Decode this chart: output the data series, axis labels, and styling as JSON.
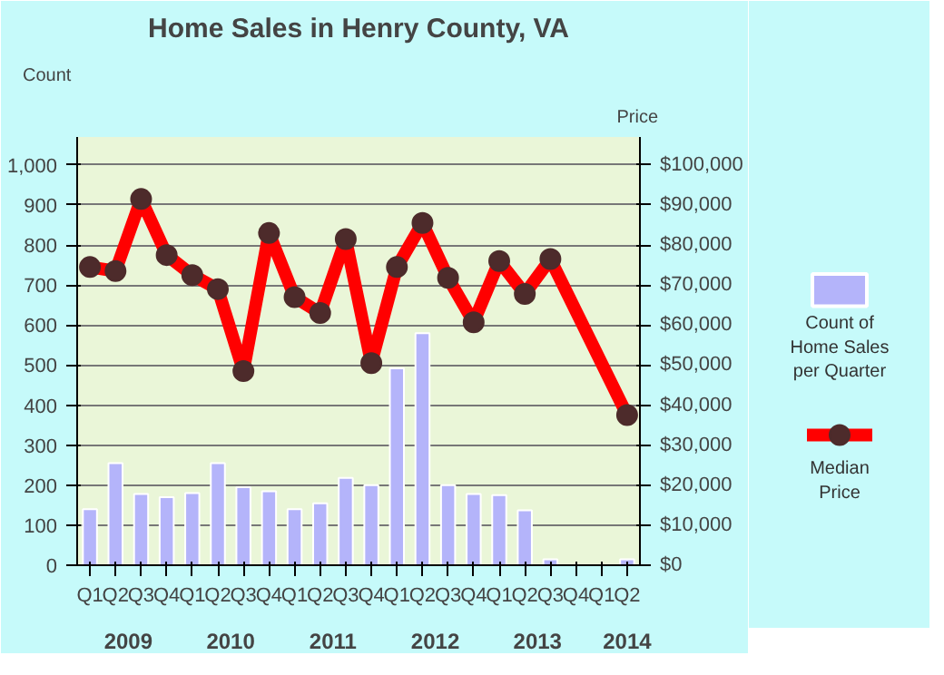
{
  "chart_data": {
    "type": "bar",
    "title": "Home Sales in Henry County, VA",
    "ylabel": "Count",
    "y2label": "Price",
    "categories": [
      "Q1",
      "Q2",
      "Q3",
      "Q4",
      "Q1",
      "Q2",
      "Q3",
      "Q4",
      "Q1",
      "Q2",
      "Q3",
      "Q4",
      "Q1",
      "Q2",
      "Q3",
      "Q4",
      "Q1",
      "Q2",
      "Q3",
      "Q4",
      "Q1",
      "Q2"
    ],
    "annotations": [
      "2009",
      "2010",
      "2011",
      "2012",
      "2013",
      "2014"
    ],
    "series": [
      {
        "name": "Count of Home Sales per Quarter",
        "color": "#b4b4fa",
        "values": [
          140,
          255,
          178,
          170,
          180,
          255,
          195,
          185,
          140,
          155,
          218,
          200,
          492,
          580,
          200,
          178,
          175,
          137,
          15,
          null,
          null,
          15
        ]
      },
      {
        "name": "Median Price",
        "type": "line",
        "axis": "y2",
        "color": "#ff0000",
        "values": [
          74500,
          73500,
          91500,
          77500,
          72500,
          69000,
          48500,
          83000,
          67000,
          63000,
          81500,
          50500,
          74500,
          85500,
          71800,
          60700,
          76000,
          67800,
          76500,
          null,
          null,
          37500
        ]
      }
    ],
    "ylim": [
      0,
      1070
    ],
    "yticks": [
      0,
      100,
      200,
      300,
      400,
      500,
      600,
      700,
      800,
      900,
      {
        "value": 1000,
        "label": "1,000"
      }
    ],
    "y2lim": [
      0,
      107000
    ],
    "y2ticks": [
      {
        "value": 0,
        "label": "$0"
      },
      {
        "value": 10000,
        "label": "$10,000"
      },
      {
        "value": 20000,
        "label": "$20,000"
      },
      {
        "value": 30000,
        "label": "$30,000"
      },
      {
        "value": 40000,
        "label": "$40,000"
      },
      {
        "value": 50000,
        "label": "$50,000"
      },
      {
        "value": 60000,
        "label": "$60,000"
      },
      {
        "value": 70000,
        "label": "$70,000"
      },
      {
        "value": 80000,
        "label": "$80,000"
      },
      {
        "value": 90000,
        "label": "$90,000"
      },
      {
        "value": 100000,
        "label": "$100,000"
      }
    ],
    "grid": "y",
    "legend": "right",
    "marker": "circle",
    "line_style": "solid"
  }
}
